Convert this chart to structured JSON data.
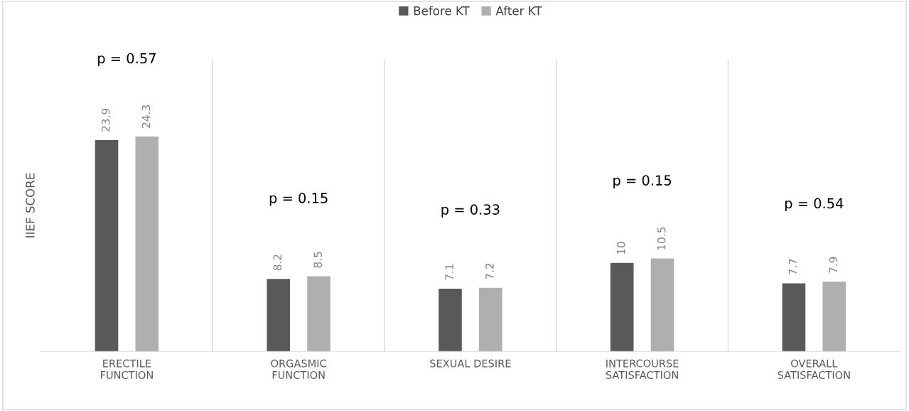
{
  "chart_data": {
    "type": "bar",
    "ylabel": "IIEF SCORE",
    "categories": [
      "ERECTILE FUNCTION",
      "ORGASMIC FUNCTION",
      "SEXUAL DESIRE",
      "INTERCOURSE SATISFACTION",
      "OVERALL SATISFACTION"
    ],
    "series": [
      {
        "name": "Before KT",
        "color": "#595959",
        "values": [
          23.9,
          8.2,
          7.1,
          10,
          7.7
        ]
      },
      {
        "name": "After KT",
        "color": "#afafaf",
        "values": [
          24.3,
          8.5,
          7.2,
          10.5,
          7.9
        ]
      }
    ],
    "ylim": [
      0,
      33
    ],
    "tick_labels": "x",
    "data_labels": true,
    "grid": "x",
    "legend": "top",
    "annotations": [
      "p = 0.57",
      "p = 0.15",
      "p = 0.33",
      "p = 0.15",
      "p = 0.54"
    ]
  }
}
